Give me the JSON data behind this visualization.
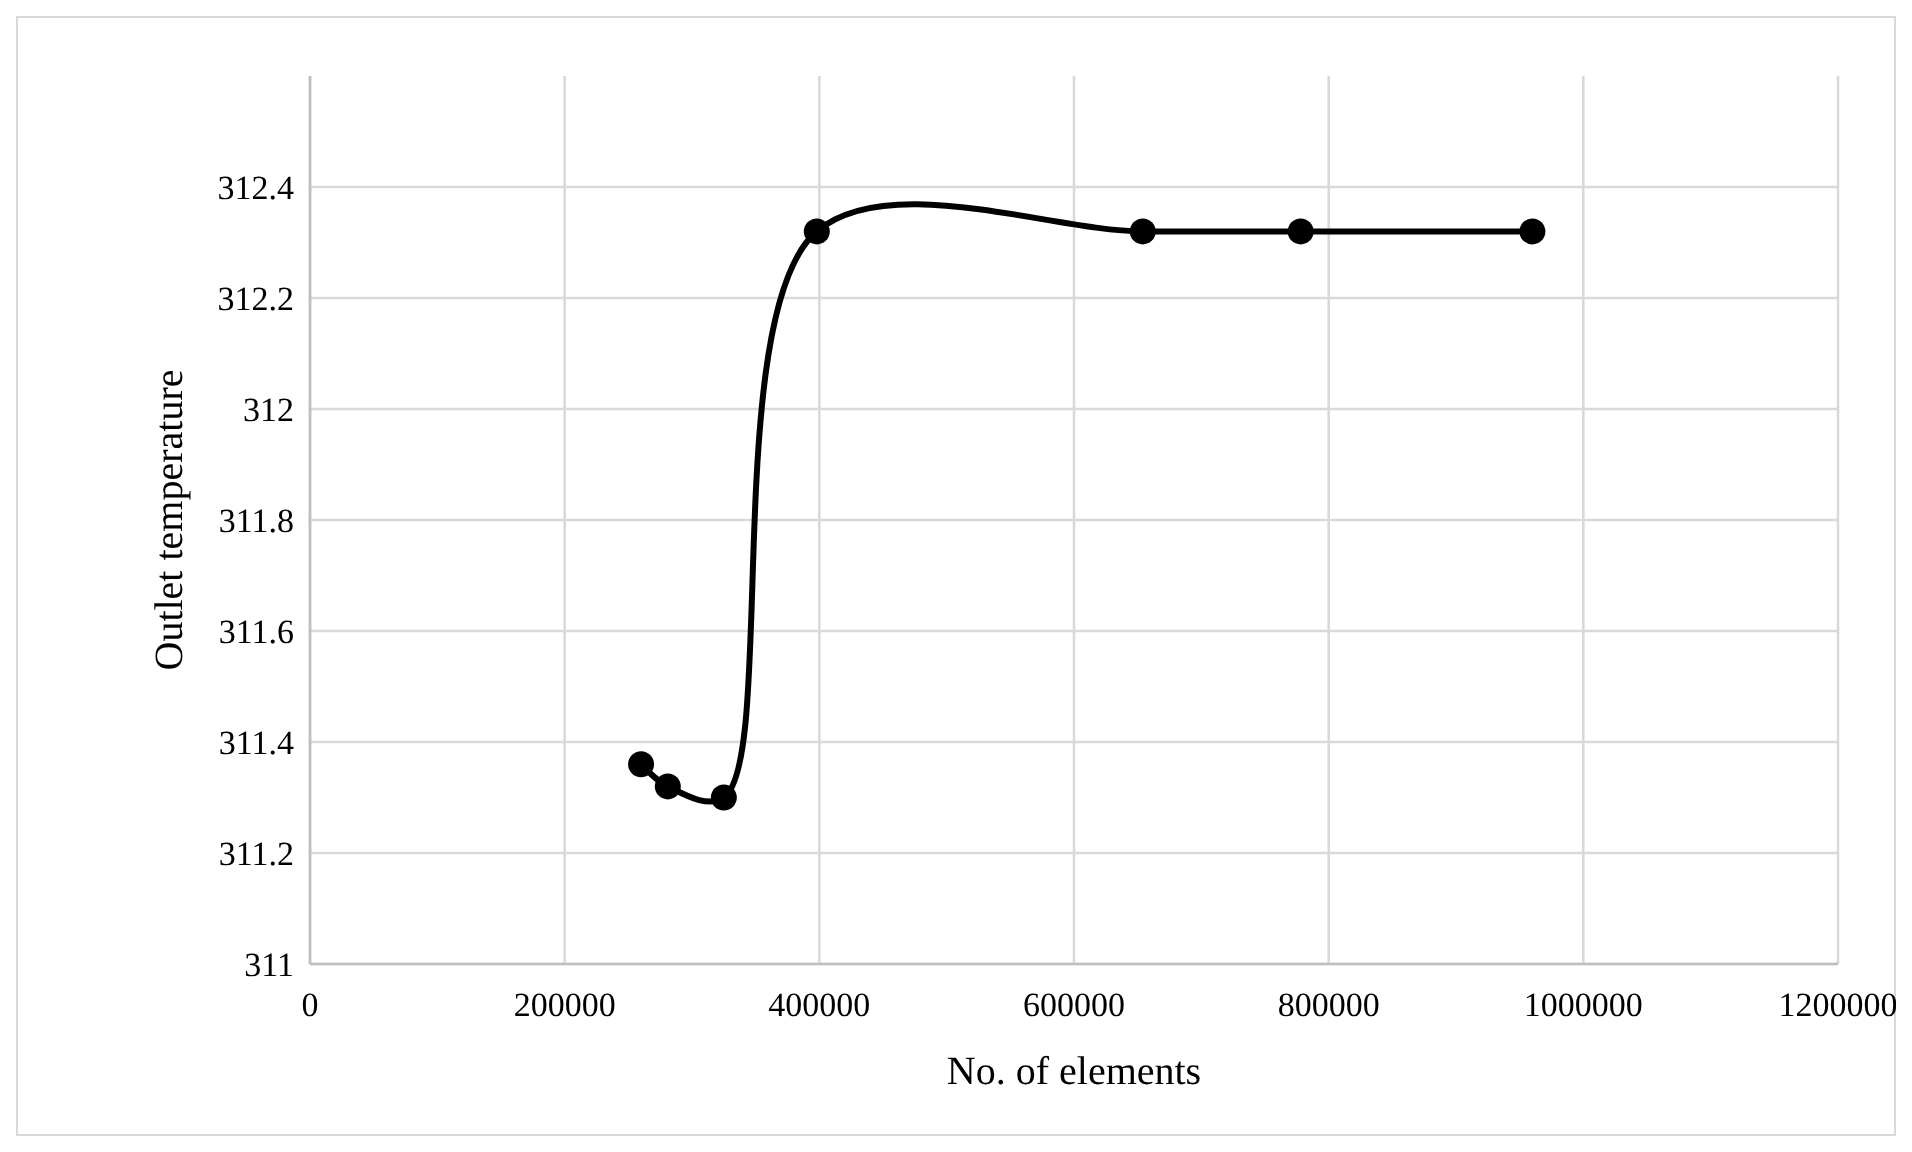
{
  "chart_data": {
    "type": "line",
    "xlabel": "No. of elements",
    "ylabel": "Outlet temperature",
    "x": [
      260000,
      281000,
      325000,
      398000,
      654000,
      778000,
      960000
    ],
    "series": [
      {
        "color": "#000000",
        "values": [
          311.36,
          311.32,
          311.3,
          312.32,
          312.32,
          312.32,
          312.32
        ]
      }
    ],
    "xlim": [
      0,
      1200000
    ],
    "xticks": [
      0,
      200000,
      400000,
      600000,
      800000,
      1000000,
      1200000
    ],
    "ylim": [
      311,
      312.6
    ],
    "yticks": [
      311,
      311.2,
      311.4,
      311.6,
      311.8,
      312,
      312.2,
      312.4
    ],
    "grid": true,
    "marker": "circle",
    "line_style": "solid"
  }
}
